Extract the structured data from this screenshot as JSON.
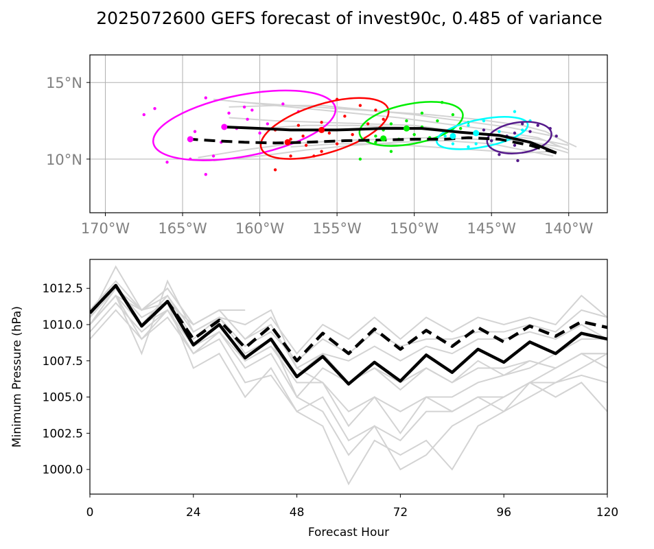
{
  "title": "2025072600 GEFS forecast of invest90c, 0.485 of variance",
  "colors": {
    "ensemble": "#d3d3d3",
    "mean": "#000000",
    "map_ticks": "#808080",
    "ellipses": [
      "#ff00ff",
      "#ff0000",
      "#00ee00",
      "#00ffff",
      "#551a8b"
    ]
  },
  "chart_data": [
    {
      "type": "scatter",
      "subtype": "track-map",
      "xlim": [
        -171,
        -137.5
      ],
      "ylim": [
        6.5,
        16.8
      ],
      "x_ticks": [
        -170,
        -165,
        -160,
        -155,
        -150,
        -145,
        -140
      ],
      "x_tick_labels": [
        "170°W",
        "165°W",
        "160°W",
        "155°W",
        "150°W",
        "145°W",
        "140°W"
      ],
      "y_ticks": [
        10,
        15
      ],
      "y_tick_labels": [
        "10°N",
        "15°N"
      ],
      "grid": true,
      "mean_track_solid": {
        "lon": [
          -140.8,
          -142.5,
          -144.5,
          -147,
          -149.5,
          -152,
          -155,
          -158,
          -160,
          -162.3
        ],
        "lat": [
          10.4,
          11.1,
          11.55,
          11.75,
          12.0,
          12.0,
          11.9,
          11.9,
          12.0,
          12.1
        ]
      },
      "mean_track_dashed": {
        "lon": [
          -140.8,
          -142.5,
          -144.5,
          -146.5,
          -148,
          -150,
          -152,
          -154.5,
          -157,
          -159,
          -161,
          -163,
          -164.5
        ],
        "lat": [
          10.4,
          10.9,
          11.3,
          11.4,
          11.3,
          11.3,
          11.25,
          11.2,
          11.1,
          11.05,
          11.1,
          11.2,
          11.3
        ]
      },
      "ensemble_tracks": [
        {
          "lon": [
            -140,
            -142,
            -145,
            -148,
            -151,
            -154,
            -157,
            -160,
            -163
          ],
          "lat": [
            10.6,
            11.4,
            11.9,
            12.3,
            12.7,
            13.0,
            13.3,
            13.6,
            13.9
          ]
        },
        {
          "lon": [
            -140,
            -142,
            -144,
            -147,
            -150,
            -153,
            -156,
            -159,
            -162
          ],
          "lat": [
            10.4,
            11.0,
            11.4,
            11.8,
            12.2,
            12.3,
            12.4,
            12.5,
            12.7
          ]
        },
        {
          "lon": [
            -140.5,
            -143,
            -146,
            -149,
            -152,
            -155,
            -158,
            -161,
            -164
          ],
          "lat": [
            10.8,
            11.2,
            11.3,
            11.4,
            11.3,
            11.2,
            11.0,
            10.6,
            10.1
          ]
        },
        {
          "lon": [
            -141,
            -143,
            -145,
            -148,
            -151,
            -154,
            -157,
            -160,
            -163
          ],
          "lat": [
            10.2,
            10.6,
            11.0,
            11.2,
            11.1,
            10.9,
            10.6,
            10.2,
            9.9
          ]
        },
        {
          "lon": [
            -139.5,
            -141,
            -144,
            -147,
            -150,
            -153,
            -156,
            -159,
            -162
          ],
          "lat": [
            10.8,
            11.5,
            12.1,
            12.5,
            12.9,
            13.2,
            13.5,
            13.5,
            13.4
          ]
        },
        {
          "lon": [
            -140,
            -142,
            -145,
            -148,
            -151,
            -154,
            -157,
            -160
          ],
          "lat": [
            10.9,
            11.3,
            11.6,
            11.8,
            12.1,
            12.2,
            12.2,
            12.0
          ]
        },
        {
          "lon": [
            -141,
            -143,
            -146,
            -149,
            -152,
            -155,
            -158
          ],
          "lat": [
            10.5,
            10.4,
            10.6,
            10.8,
            11.0,
            11.0,
            10.8
          ]
        },
        {
          "lon": [
            -140,
            -141.5,
            -143,
            -146,
            -149,
            -152,
            -155,
            -158,
            -161
          ],
          "lat": [
            11.0,
            11.8,
            12.2,
            12.6,
            12.9,
            13.1,
            13.3,
            13.5,
            13.7
          ]
        }
      ],
      "mean_points": [
        {
          "lon": -162.3,
          "lat": 12.1,
          "color": "#ff00ff"
        },
        {
          "lon": -164.5,
          "lat": 11.3,
          "color": "#ff00ff"
        },
        {
          "lon": -156.0,
          "lat": 11.9,
          "color": "#ff0000"
        },
        {
          "lon": -158.2,
          "lat": 11.1,
          "color": "#ff0000"
        },
        {
          "lon": -150.5,
          "lat": 12.0,
          "color": "#00ee00"
        },
        {
          "lon": -152.0,
          "lat": 11.35,
          "color": "#00ee00"
        },
        {
          "lon": -146.0,
          "lat": 11.7,
          "color": "#00ffff"
        },
        {
          "lon": -147.5,
          "lat": 11.5,
          "color": "#00ffff"
        }
      ],
      "ellipses": [
        {
          "lon": -161.0,
          "lat": 12.2,
          "rx_deg": 6.0,
          "ry_deg": 2.0,
          "tilt_deg": 11,
          "color": "#ff00ff"
        },
        {
          "lon": -155.8,
          "lat": 12.0,
          "rx_deg": 4.3,
          "ry_deg": 1.6,
          "tilt_deg": 17,
          "color": "#ff0000"
        },
        {
          "lon": -150.2,
          "lat": 12.3,
          "rx_deg": 3.4,
          "ry_deg": 1.3,
          "tilt_deg": 11,
          "color": "#00ee00"
        },
        {
          "lon": -145.6,
          "lat": 11.7,
          "rx_deg": 3.0,
          "ry_deg": 0.9,
          "tilt_deg": 11,
          "color": "#00ffff"
        },
        {
          "lon": -143.2,
          "lat": 11.4,
          "rx_deg": 2.1,
          "ry_deg": 1.0,
          "tilt_deg": 8,
          "color": "#551a8b"
        }
      ],
      "member_points": {
        "magenta": [
          [
            -167.5,
            12.9
          ],
          [
            -166.8,
            13.3
          ],
          [
            -163.5,
            14.0
          ],
          [
            -162.0,
            13.0
          ],
          [
            -161.0,
            13.4
          ],
          [
            -160.5,
            13.2
          ],
          [
            -160.8,
            12.6
          ],
          [
            -159.5,
            12.3
          ],
          [
            -158.5,
            13.6
          ],
          [
            -157.5,
            13.1
          ],
          [
            -161.5,
            12.0
          ],
          [
            -163.0,
            10.2
          ],
          [
            -164.5,
            10.0
          ],
          [
            -166.0,
            9.8
          ],
          [
            -163.5,
            9.0
          ],
          [
            -164.2,
            11.8
          ],
          [
            -162.5,
            11.1
          ],
          [
            -160.0,
            11.7
          ]
        ],
        "red": [
          [
            -155.0,
            13.9
          ],
          [
            -153.5,
            13.5
          ],
          [
            -152.5,
            13.2
          ],
          [
            -154.5,
            12.8
          ],
          [
            -156.0,
            12.4
          ],
          [
            -157.5,
            12.2
          ],
          [
            -159.0,
            11.9
          ],
          [
            -158.0,
            11.3
          ],
          [
            -157.0,
            10.9
          ],
          [
            -156.0,
            10.5
          ],
          [
            -156.5,
            10.2
          ],
          [
            -158.0,
            10.2
          ],
          [
            -159.0,
            9.3
          ],
          [
            -155.0,
            11.0
          ],
          [
            -154.0,
            11.6
          ],
          [
            -152.0,
            12.6
          ],
          [
            -153.0,
            12.3
          ],
          [
            -155.5,
            11.7
          ],
          [
            -157.2,
            11.5
          ]
        ],
        "green": [
          [
            -148.2,
            13.7
          ],
          [
            -149.5,
            13.0
          ],
          [
            -147.5,
            12.9
          ],
          [
            -148.5,
            12.5
          ],
          [
            -150.5,
            12.5
          ],
          [
            -151.5,
            12.3
          ],
          [
            -152.0,
            11.9
          ],
          [
            -152.5,
            11.5
          ],
          [
            -151.0,
            11.3
          ],
          [
            -150.0,
            11.6
          ],
          [
            -149.0,
            11.4
          ],
          [
            -152.5,
            11.1
          ],
          [
            -153.5,
            10.0
          ],
          [
            -151.5,
            10.5
          ],
          [
            -147.0,
            12.0
          ],
          [
            -146.5,
            12.4
          ],
          [
            -149.5,
            12.1
          ]
        ],
        "cyan": [
          [
            -143.5,
            13.1
          ],
          [
            -145.5,
            12.5
          ],
          [
            -146.5,
            12.2
          ],
          [
            -147.5,
            11.9
          ],
          [
            -148.0,
            11.5
          ],
          [
            -147.5,
            11.0
          ],
          [
            -146.5,
            10.8
          ],
          [
            -145.0,
            11.2
          ],
          [
            -144.0,
            11.4
          ],
          [
            -143.0,
            11.9
          ],
          [
            -142.5,
            12.5
          ],
          [
            -144.5,
            11.8
          ],
          [
            -146.0,
            11.0
          ]
        ],
        "purple": [
          [
            -141.2,
            12.0
          ],
          [
            -140.8,
            11.5
          ],
          [
            -142.0,
            12.2
          ],
          [
            -142.5,
            11.8
          ],
          [
            -143.0,
            12.3
          ],
          [
            -143.5,
            11.7
          ],
          [
            -144.0,
            11.5
          ],
          [
            -143.5,
            10.9
          ],
          [
            -144.5,
            10.3
          ],
          [
            -143.3,
            9.9
          ],
          [
            -142.3,
            11.0
          ],
          [
            -145.5,
            11.9
          ],
          [
            -145.0,
            11.2
          ]
        ]
      }
    },
    {
      "type": "line",
      "xlabel": "Forecast Hour",
      "ylabel": "Minimum Pressure (hPa)",
      "xlim": [
        0,
        120
      ],
      "ylim": [
        998.3,
        1014.5
      ],
      "x_ticks": [
        0,
        24,
        48,
        72,
        96,
        120
      ],
      "y_ticks": [
        1000.0,
        1002.5,
        1005.0,
        1007.5,
        1010.0,
        1012.5
      ],
      "y_tick_labels": [
        "1000.0",
        "1002.5",
        "1005.0",
        "1007.5",
        "1010.0",
        "1012.5"
      ],
      "x": [
        0,
        6,
        12,
        18,
        24,
        30,
        36,
        42,
        48,
        54,
        60,
        66,
        72,
        78,
        84,
        90,
        96,
        102,
        108,
        114,
        120
      ],
      "series": [
        {
          "role": "mean_solid",
          "values": [
            1010.8,
            1012.7,
            1009.9,
            1011.6,
            1008.6,
            1010.0,
            1007.7,
            1009.0,
            1006.4,
            1007.8,
            1005.9,
            1007.4,
            1006.1,
            1007.9,
            1006.7,
            1008.3,
            1007.4,
            1008.8,
            1008.0,
            1009.4,
            1009.0
          ]
        },
        {
          "role": "mean_dashed",
          "values": [
            1010.8,
            1012.7,
            1009.9,
            1011.6,
            1009.0,
            1010.3,
            1008.4,
            1009.9,
            1007.5,
            1009.4,
            1008.0,
            1009.7,
            1008.3,
            1009.6,
            1008.5,
            1009.8,
            1008.8,
            1009.9,
            1009.2,
            1010.2,
            1009.8
          ]
        }
      ],
      "ensemble": [
        [
          1010.5,
          1014.0,
          1011.0,
          1012.5,
          1010.0,
          1011.0,
          1009.0,
          1010.5,
          1008.0,
          1010.0,
          1009.0,
          1010.5,
          1009.0,
          1010.5,
          1009.5,
          1010.5,
          1010.0,
          1010.5,
          1010.0,
          1012.0,
          1010.5
        ],
        [
          1010.0,
          1012.5,
          1010.0,
          1012.0,
          1009.0,
          1010.5,
          1008.5,
          1009.5,
          1007.5,
          1009.0,
          1008.0,
          1009.5,
          1008.5,
          1009.0,
          1009.0,
          1009.5,
          1009.5,
          1010.0,
          1009.5,
          1011.0,
          1010.5
        ],
        [
          1009.5,
          1011.5,
          1009.5,
          1011.0,
          1008.5,
          1010.0,
          1007.5,
          1008.5,
          1006.5,
          1008.0,
          1007.5,
          1008.5,
          1007.5,
          1008.5,
          1008.0,
          1009.0,
          1009.0,
          1009.5,
          1009.0,
          1010.0,
          1009.0
        ],
        [
          1009.0,
          1011.0,
          1009.0,
          1010.5,
          1008.0,
          1009.5,
          1007.0,
          1008.0,
          1005.0,
          1007.0,
          1006.0,
          1007.0,
          1006.0,
          1007.0,
          1006.0,
          1007.0,
          1007.0,
          1007.5,
          1007.0,
          1008.0,
          1008.0
        ],
        [
          1010.0,
          1012.0,
          1008.0,
          1013.0,
          1009.5,
          1010.5,
          1010.0,
          1011.0,
          1007.0,
          1008.0,
          1006.0,
          1007.0,
          1005.5,
          1007.0,
          1006.0,
          1007.5,
          1006.5,
          1007.5,
          1007.0,
          1008.0,
          1007.0
        ],
        [
          1010.5,
          1012.5,
          1010.5,
          1011.5,
          1007.0,
          1008.0,
          1005.0,
          1007.0,
          1004.0,
          1005.0,
          1002.0,
          1003.0,
          1002.0,
          1004.0,
          1004.0,
          1005.0,
          1005.0,
          1006.0,
          1005.0,
          1006.0,
          1004.0
        ],
        [
          1010.0,
          1012.0,
          1010.0,
          1011.0,
          1008.0,
          1009.0,
          1006.0,
          1006.5,
          1004.0,
          1003.0,
          999.0,
          1002.0,
          1001.0,
          1002.0,
          1000.0,
          1003.0,
          1004.0,
          1005.0,
          1006.0,
          1007.0,
          1008.0
        ],
        [
          1010.5,
          1012.5,
          1011.0,
          1012.0,
          1009.5,
          1010.5,
          1008.0,
          1009.0,
          1005.0,
          1004.0,
          1001.0,
          1003.0,
          1000.0,
          1001.0,
          1003.0,
          1004.0,
          1005.0,
          1006.0,
          1007.0,
          1008.0,
          1008.0
        ],
        [
          1011.0,
          1013.0,
          1011.0,
          1011.5,
          1010.0,
          1011.0,
          1009.0,
          1010.0,
          1007.0,
          1006.0,
          1003.0,
          1005.0,
          1002.5,
          1005.0,
          1005.0,
          1006.0,
          1006.5,
          1007.0,
          1008.0,
          1009.0,
          1009.0
        ],
        [
          1010.0,
          1012.0,
          1009.0,
          1011.0,
          1008.5,
          1009.5,
          1007.5,
          1008.5,
          1006.0,
          1006.0,
          1004.0,
          1005.0,
          1004.0,
          1005.0,
          1004.0,
          1005.0,
          1004.0,
          1006.0,
          1006.0,
          1006.5,
          1006.0
        ]
      ],
      "partial_member": {
        "x": [
          0,
          6,
          12,
          18,
          24,
          30,
          36
        ],
        "values": [
          1010.0,
          1012.0,
          1011.0,
          1012.5,
          1010.0,
          1011.0,
          1011.0
        ]
      }
    }
  ]
}
